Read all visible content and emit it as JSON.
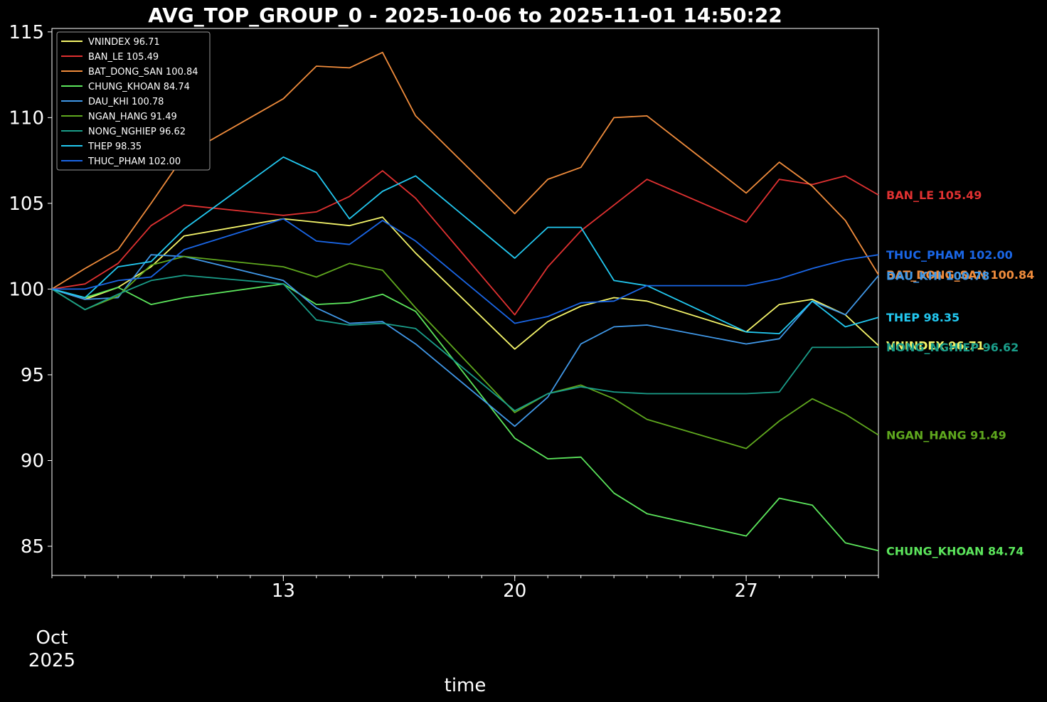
{
  "chart_data": {
    "type": "line",
    "title": "AVG_TOP_GROUP_0 - 2025-10-06 to 2025-11-01 14:50:22",
    "xlabel": "time",
    "ylabel": "",
    "ylim": [
      83.3,
      115.2
    ],
    "xlim": [
      "2025-10-06",
      "2025-10-31"
    ],
    "x_tick_labels": [
      {
        "date": "2025-10-13",
        "label": "13"
      },
      {
        "date": "2025-10-20",
        "label": "20"
      },
      {
        "date": "2025-10-27",
        "label": "27"
      }
    ],
    "x_offset_label": {
      "month": "Oct",
      "year": "2025"
    },
    "y_ticks": [
      85,
      90,
      95,
      100,
      105,
      110,
      115
    ],
    "legend_position": "top-left",
    "grid": false,
    "x": [
      "2025-10-06",
      "2025-10-07",
      "2025-10-08",
      "2025-10-09",
      "2025-10-10",
      "2025-10-13",
      "2025-10-14",
      "2025-10-15",
      "2025-10-16",
      "2025-10-17",
      "2025-10-20",
      "2025-10-21",
      "2025-10-22",
      "2025-10-23",
      "2025-10-24",
      "2025-10-27",
      "2025-10-28",
      "2025-10-29",
      "2025-10-30",
      "2025-10-31"
    ],
    "series": [
      {
        "name": "VNINDEX",
        "legend": "VNINDEX 96.71",
        "end_label": "VNINDEX 96.71",
        "color": "#f5f56a",
        "values": [
          100.0,
          99.4,
          100.1,
          101.3,
          103.1,
          104.1,
          103.9,
          103.7,
          104.2,
          102.1,
          96.5,
          98.1,
          99.0,
          99.5,
          99.3,
          97.5,
          99.1,
          99.4,
          98.5,
          96.71
        ]
      },
      {
        "name": "BAN_LE",
        "legend": "BAN_LE 105.49",
        "end_label": "BAN_LE 105.49",
        "color": "#e03131",
        "values": [
          100.0,
          100.3,
          101.5,
          103.7,
          104.9,
          104.3,
          104.5,
          105.4,
          106.9,
          105.3,
          98.5,
          101.3,
          103.4,
          104.9,
          106.4,
          103.9,
          106.4,
          106.1,
          106.6,
          105.49
        ]
      },
      {
        "name": "BAT_DONG_SAN",
        "legend": "BAT_DONG_SAN 100.84",
        "end_label": "BAT_DONG_SAN 100.84",
        "color": "#f08c3c",
        "values": [
          100.0,
          101.2,
          102.3,
          105.0,
          107.8,
          111.1,
          113.0,
          112.9,
          113.8,
          110.1,
          104.4,
          106.4,
          107.1,
          110.0,
          110.1,
          105.6,
          107.4,
          106.0,
          104.0,
          100.84
        ]
      },
      {
        "name": "CHUNG_KHOAN",
        "legend": "CHUNG_KHOAN 84.74",
        "end_label": "CHUNG_KHOAN 84.74",
        "color": "#5ce65c",
        "values": [
          100.0,
          99.5,
          100.1,
          99.1,
          99.5,
          100.3,
          99.1,
          99.2,
          99.7,
          98.7,
          91.3,
          90.1,
          90.2,
          88.1,
          86.9,
          85.6,
          87.8,
          87.4,
          85.2,
          84.74
        ]
      },
      {
        "name": "DAU_KHI",
        "legend": "DAU_KHI 100.78",
        "end_label": "DAU_KHI 100.78",
        "color": "#4098e8",
        "values": [
          100.0,
          99.4,
          99.5,
          102.0,
          101.9,
          100.5,
          98.9,
          98.0,
          98.1,
          96.8,
          92.0,
          93.7,
          96.8,
          97.8,
          97.9,
          96.8,
          97.1,
          99.3,
          98.5,
          100.78
        ]
      },
      {
        "name": "NGAN_HANG",
        "legend": "NGAN_HANG 91.49",
        "end_label": "NGAN_HANG 91.49",
        "color": "#5fa81e",
        "values": [
          100.0,
          98.8,
          99.6,
          101.4,
          101.9,
          101.3,
          100.7,
          101.5,
          101.1,
          98.9,
          92.8,
          93.9,
          94.4,
          93.6,
          92.4,
          90.7,
          92.3,
          93.6,
          92.7,
          91.49
        ]
      },
      {
        "name": "NONG_NGHIEP",
        "legend": "NONG_NGHIEP 96.62",
        "end_label": "NONG_NGHIEP 96.62",
        "color": "#1a9e8a",
        "values": [
          100.0,
          98.8,
          99.7,
          100.5,
          100.8,
          100.3,
          98.2,
          97.9,
          98.0,
          97.7,
          92.9,
          93.9,
          94.3,
          94.0,
          93.9,
          93.9,
          94.0,
          96.6,
          96.6,
          96.62
        ]
      },
      {
        "name": "THEP",
        "legend": "THEP 98.35",
        "end_label": "THEP 98.35",
        "color": "#22c8f0",
        "values": [
          100.0,
          99.5,
          101.3,
          101.6,
          103.5,
          107.7,
          106.8,
          104.1,
          105.7,
          106.6,
          101.8,
          103.6,
          103.6,
          100.5,
          100.2,
          97.5,
          97.4,
          99.3,
          97.8,
          98.35
        ]
      },
      {
        "name": "THUC_PHAM",
        "legend": "THUC_PHAM 102.00",
        "end_label": "THUC_PHAM 102.00",
        "color": "#1a66e6",
        "values": [
          100.0,
          100.0,
          100.5,
          100.7,
          102.3,
          104.1,
          102.8,
          102.6,
          104.0,
          102.8,
          98.0,
          98.4,
          99.2,
          99.3,
          100.2,
          100.2,
          100.6,
          101.2,
          101.7,
          102.0
        ]
      }
    ]
  }
}
